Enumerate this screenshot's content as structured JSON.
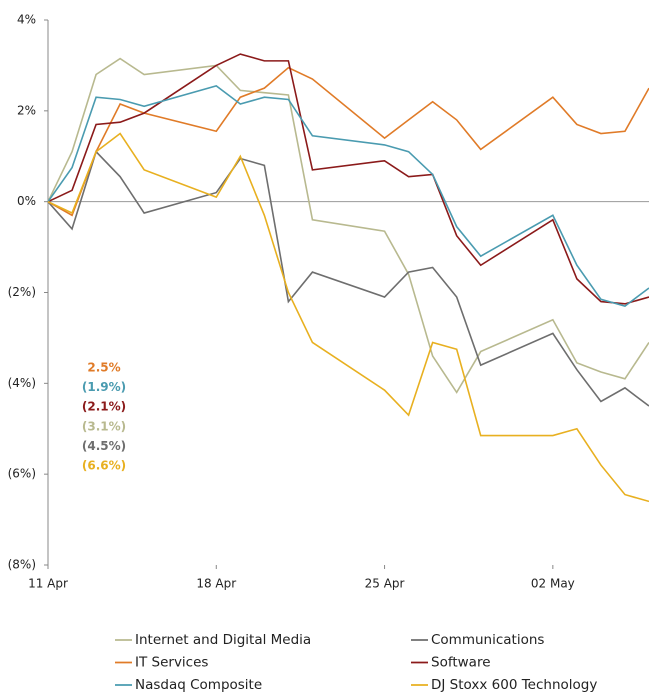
{
  "chart_data": {
    "type": "line",
    "x": [
      0,
      1,
      2,
      3,
      4,
      7,
      8,
      9,
      10,
      11,
      14,
      15,
      16,
      17,
      18,
      21,
      22,
      23,
      24,
      25
    ],
    "xlim": [
      0,
      25
    ],
    "xticks": [
      {
        "value": 0,
        "label": "11 Apr"
      },
      {
        "value": 7,
        "label": "18 Apr"
      },
      {
        "value": 14,
        "label": "25 Apr"
      },
      {
        "value": 21,
        "label": "02 May"
      }
    ],
    "ylim": [
      -8,
      4
    ],
    "yticks": [
      {
        "value": 4,
        "label": "4%"
      },
      {
        "value": 2,
        "label": "2%"
      },
      {
        "value": 0,
        "label": "0%"
      },
      {
        "value": -2,
        "label": "(2%)"
      },
      {
        "value": -4,
        "label": "(4%)"
      },
      {
        "value": -6,
        "label": "(6%)"
      },
      {
        "value": -8,
        "label": "(8%)"
      }
    ],
    "series": [
      {
        "name": "Internet and Digital Media",
        "color": "#b8b98f",
        "label": "(3.1%)",
        "values": [
          0,
          1.1,
          2.8,
          3.15,
          2.8,
          3.0,
          2.45,
          2.4,
          2.35,
          -0.4,
          -0.65,
          -1.6,
          -3.4,
          -4.2,
          -3.3,
          -2.6,
          -3.55,
          -3.75,
          -3.9,
          -3.1
        ]
      },
      {
        "name": "Communications",
        "color": "#6e6e6e",
        "label": "(4.5%)",
        "values": [
          0,
          -0.6,
          1.1,
          0.55,
          -0.25,
          0.2,
          0.95,
          0.8,
          -2.2,
          -1.55,
          -2.1,
          -1.55,
          -1.45,
          -2.1,
          -3.6,
          -2.9,
          -3.7,
          -4.4,
          -4.1,
          -4.5
        ]
      },
      {
        "name": "IT Services",
        "color": "#e07b28",
        "label": "2.5%",
        "values": [
          0,
          -0.3,
          1.1,
          2.15,
          1.95,
          1.55,
          2.3,
          2.5,
          2.95,
          2.7,
          1.4,
          1.8,
          2.2,
          1.8,
          1.15,
          2.3,
          1.7,
          1.5,
          1.55,
          2.5
        ]
      },
      {
        "name": "Software",
        "color": "#8b1a1a",
        "label": "(2.1%)",
        "values": [
          0,
          0.25,
          1.7,
          1.75,
          1.95,
          3.0,
          3.25,
          3.1,
          3.1,
          0.7,
          0.9,
          0.55,
          0.6,
          -0.75,
          -1.4,
          -0.4,
          -1.7,
          -2.2,
          -2.25,
          -2.1
        ]
      },
      {
        "name": "Nasdaq Composite",
        "color": "#4a9bb0",
        "label": "(1.9%)",
        "values": [
          0,
          0.75,
          2.3,
          2.25,
          2.1,
          2.55,
          2.15,
          2.3,
          2.25,
          1.45,
          1.25,
          1.1,
          0.6,
          -0.55,
          -1.2,
          -0.3,
          -1.4,
          -2.15,
          -2.3,
          -1.9
        ]
      },
      {
        "name": "DJ Stoxx 600 Technology",
        "color": "#e8b020",
        "label": "(6.6%)",
        "values": [
          0,
          -0.25,
          1.1,
          1.5,
          0.7,
          0.1,
          1.0,
          -0.3,
          -2.0,
          -3.1,
          -4.15,
          -4.7,
          -3.1,
          -3.25,
          -5.15,
          -5.15,
          -5.0,
          -5.8,
          -6.45,
          -6.6
        ]
      }
    ]
  }
}
